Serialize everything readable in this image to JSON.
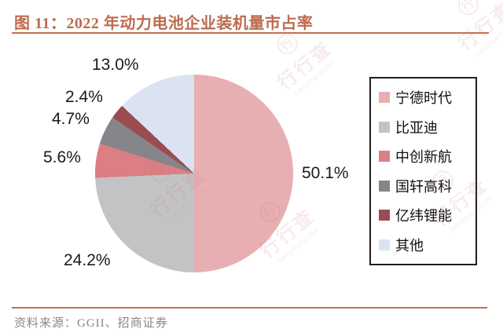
{
  "header": {
    "title": "图 11：2022 年动力电池企业装机量市占率"
  },
  "footer": {
    "source": "资料来源：GGII、招商证券"
  },
  "colors": {
    "accent": "#be6a4e",
    "rule": "#c0714f",
    "legend_border": "#1f1f1f",
    "label_text": "#1a1a1a",
    "source_text": "#8c8680"
  },
  "watermark": {
    "text": "行行查",
    "subtext": "hanghangcha",
    "logo_glyph": "行"
  },
  "chart_data": {
    "type": "pie",
    "title": "2022 年动力电池企业装机量市占率",
    "unit": "%",
    "start_angle_deg": 0,
    "direction": "clockwise",
    "legend_position": "right",
    "series": [
      {
        "name": "宁德时代",
        "value": 50.1,
        "pct_label": "50.1%",
        "color": "#e7afb2"
      },
      {
        "name": "比亚迪",
        "value": 24.2,
        "pct_label": "24.2%",
        "color": "#c3c3c6"
      },
      {
        "name": "中创新航",
        "value": 5.6,
        "pct_label": "5.6%",
        "color": "#db7f84"
      },
      {
        "name": "国轩高科",
        "value": 4.7,
        "pct_label": "4.7%",
        "color": "#85858a"
      },
      {
        "name": "亿纬锂能",
        "value": 2.4,
        "pct_label": "2.4%",
        "color": "#9b4c50"
      },
      {
        "name": "其他",
        "value": 13.0,
        "pct_label": "13.0%",
        "color": "#dbe3f3"
      }
    ]
  }
}
